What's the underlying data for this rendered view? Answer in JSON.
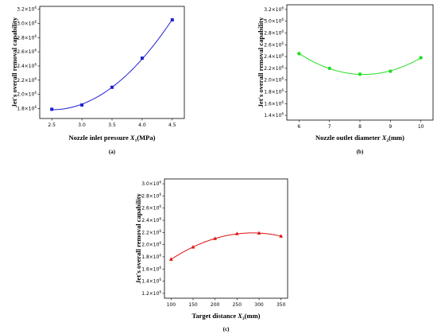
{
  "chart_data": [
    {
      "type": "line",
      "panel_label": "(a)",
      "xlabel": "Nozzle inlet pressure X1(MPa)",
      "xlabel_main": "Nozzle inlet pressure ",
      "xlabel_var": "X",
      "xlabel_sub": "1",
      "xlabel_unit": "(MPa)",
      "ylabel": "Jet's overall removal capability",
      "xlim": [
        2.3,
        4.7
      ],
      "ylim": [
        1.66,
        3.24
      ],
      "xticks": [
        2.5,
        3.0,
        3.5,
        4.0,
        4.5
      ],
      "xtick_labels": [
        "2.5",
        "3.0",
        "3.5",
        "4.0",
        "4.5"
      ],
      "yticks": [
        1.8,
        2.0,
        2.2,
        2.4,
        2.6,
        2.8,
        3.0,
        3.2
      ],
      "ytick_mantissas": [
        "1.8",
        "2.0",
        "2.2",
        "2.4",
        "2.6",
        "2.8",
        "3.0",
        "3.2"
      ],
      "ytick_suffix": "×10",
      "ytick_exponent": "6",
      "marker": "square",
      "color": "#1f1fd0",
      "x": [
        2.5,
        3.0,
        3.5,
        4.0,
        4.5
      ],
      "y": [
        1.79,
        1.85,
        2.1,
        2.51,
        3.05
      ]
    },
    {
      "type": "line",
      "panel_label": "(b)",
      "xlabel": "Nozzle outlet diameter X2(mm)",
      "xlabel_main": "Nozzle outlet diameter ",
      "xlabel_var": "X",
      "xlabel_sub": "2",
      "xlabel_unit": "(mm)",
      "ylabel": "Jet's overall removal capability",
      "xlim": [
        5.6,
        10.4
      ],
      "ylim": [
        1.32,
        3.28
      ],
      "xticks": [
        6,
        7,
        8,
        9,
        10
      ],
      "xtick_labels": [
        "6",
        "7",
        "8",
        "9",
        "10"
      ],
      "yticks": [
        1.4,
        1.6,
        1.8,
        2.0,
        2.2,
        2.4,
        2.6,
        2.8,
        3.0,
        3.2
      ],
      "ytick_mantissas": [
        "1.4",
        "1.6",
        "1.8",
        "2.0",
        "2.2",
        "2.4",
        "2.6",
        "2.8",
        "3.0",
        "3.2"
      ],
      "ytick_suffix": "×10",
      "ytick_exponent": "6",
      "marker": "circle",
      "color": "#22dd22",
      "x": [
        6,
        7,
        8,
        9,
        10
      ],
      "y": [
        2.45,
        2.2,
        2.1,
        2.15,
        2.38
      ]
    },
    {
      "type": "line",
      "panel_label": "(c)",
      "xlabel": "Target distance X3(mm)",
      "xlabel_main": "Target distance ",
      "xlabel_var": "X",
      "xlabel_sub": "3",
      "xlabel_unit": "(mm)",
      "ylabel": "Jet's overall removal capability",
      "xlim": [
        85,
        365
      ],
      "ylim": [
        1.12,
        3.08
      ],
      "xticks": [
        100,
        150,
        200,
        250,
        300,
        350
      ],
      "xtick_labels": [
        "100",
        "150",
        "200",
        "250",
        "300",
        "350"
      ],
      "yticks": [
        1.2,
        1.4,
        1.6,
        1.8,
        2.0,
        2.2,
        2.4,
        2.6,
        2.8,
        3.0
      ],
      "ytick_mantissas": [
        "1.2",
        "1.4",
        "1.6",
        "1.8",
        "2.0",
        "2.2",
        "2.4",
        "2.6",
        "2.8",
        "3.0"
      ],
      "ytick_suffix": "×10",
      "ytick_exponent": "6",
      "marker": "triangle",
      "color": "#e01010",
      "x": [
        100,
        150,
        200,
        250,
        300,
        350
      ],
      "y": [
        1.76,
        1.96,
        2.1,
        2.18,
        2.19,
        2.14
      ]
    }
  ]
}
